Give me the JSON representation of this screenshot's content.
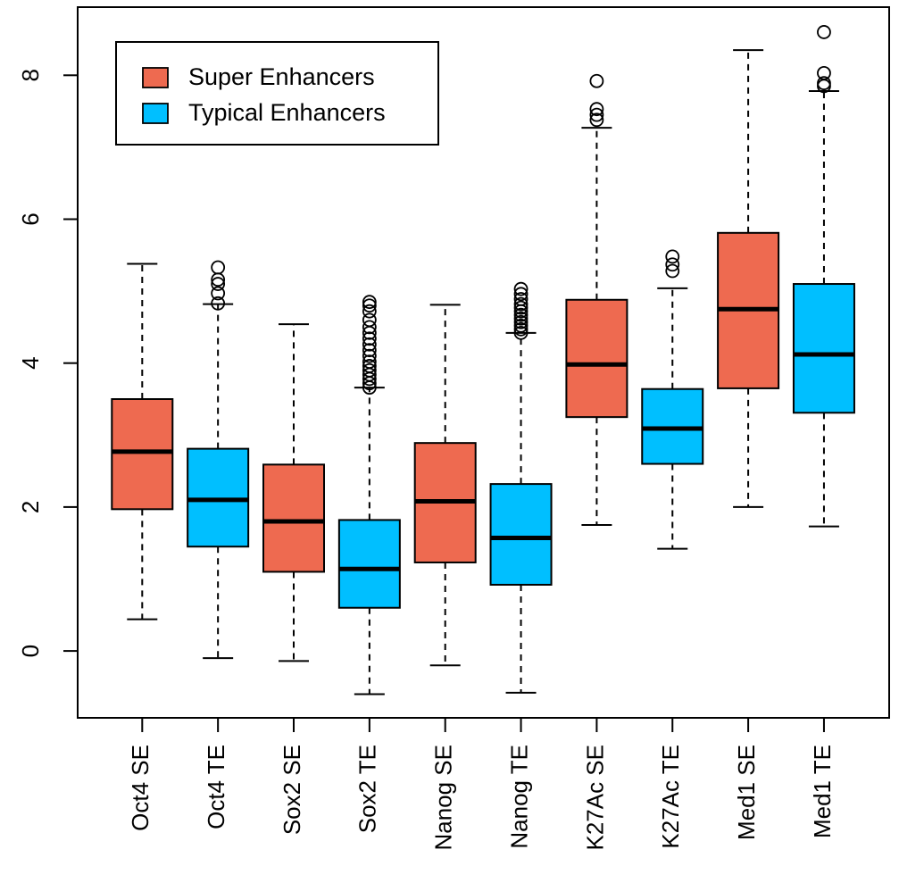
{
  "chart_data": {
    "type": "box",
    "title": "",
    "xlabel": "",
    "ylabel": "",
    "ylim": [
      -0.9,
      8.8
    ],
    "y_ticks": [
      0,
      2,
      4,
      6,
      8
    ],
    "y_tick_labels": [
      "0",
      "2",
      "4",
      "6",
      "8"
    ],
    "grid": false,
    "legend_position": "top-left",
    "legend": [
      {
        "label": "Super Enhancers",
        "color": "#EE6A50"
      },
      {
        "label": "Typical Enhancers",
        "color": "#00BFFF"
      }
    ],
    "boxes": [
      {
        "label": "Oct4 SE",
        "group": "Super Enhancers",
        "min": 0.44,
        "q1": 1.97,
        "median": 2.77,
        "q3": 3.5,
        "max": 5.38,
        "outliers": []
      },
      {
        "label": "Oct4 TE",
        "group": "Typical Enhancers",
        "min": -0.1,
        "q1": 1.45,
        "median": 2.1,
        "q3": 2.81,
        "max": 4.82,
        "outliers": [
          4.83,
          4.97,
          5.1,
          5.16,
          5.33
        ]
      },
      {
        "label": "Sox2 SE",
        "group": "Super Enhancers",
        "min": -0.14,
        "q1": 1.1,
        "median": 1.8,
        "q3": 2.59,
        "max": 4.54,
        "outliers": []
      },
      {
        "label": "Sox2 TE",
        "group": "Typical Enhancers",
        "min": -0.6,
        "q1": 0.6,
        "median": 1.14,
        "q3": 1.82,
        "max": 3.66,
        "outliers": [
          3.66,
          3.72,
          3.78,
          3.84,
          3.9,
          3.96,
          4.02,
          4.1,
          4.18,
          4.26,
          4.34,
          4.42,
          4.5,
          4.6,
          4.72,
          4.8,
          4.85
        ]
      },
      {
        "label": "Nanog SE",
        "group": "Super Enhancers",
        "min": -0.2,
        "q1": 1.23,
        "median": 2.08,
        "q3": 2.89,
        "max": 4.81,
        "outliers": []
      },
      {
        "label": "Nanog TE",
        "group": "Typical Enhancers",
        "min": -0.58,
        "q1": 0.92,
        "median": 1.57,
        "q3": 2.32,
        "max": 4.42,
        "outliers": [
          4.42,
          4.47,
          4.52,
          4.57,
          4.62,
          4.67,
          4.72,
          4.77,
          4.82,
          4.89,
          4.96,
          5.03
        ]
      },
      {
        "label": "K27Ac SE",
        "group": "Super Enhancers",
        "min": 1.75,
        "q1": 3.25,
        "median": 3.98,
        "q3": 4.88,
        "max": 7.27,
        "outliers": [
          7.38,
          7.45,
          7.53,
          7.92
        ]
      },
      {
        "label": "K27Ac TE",
        "group": "Typical Enhancers",
        "min": 1.42,
        "q1": 2.6,
        "median": 3.09,
        "q3": 3.64,
        "max": 5.04,
        "outliers": [
          5.28,
          5.37,
          5.48
        ]
      },
      {
        "label": "Med1 SE",
        "group": "Super Enhancers",
        "min": 2.0,
        "q1": 3.65,
        "median": 4.75,
        "q3": 5.81,
        "max": 8.35,
        "outliers": []
      },
      {
        "label": "Med1 TE",
        "group": "Typical Enhancers",
        "min": 1.73,
        "q1": 3.31,
        "median": 4.12,
        "q3": 5.1,
        "max": 7.78,
        "outliers": [
          7.85,
          7.89,
          8.03,
          8.6
        ]
      }
    ]
  }
}
